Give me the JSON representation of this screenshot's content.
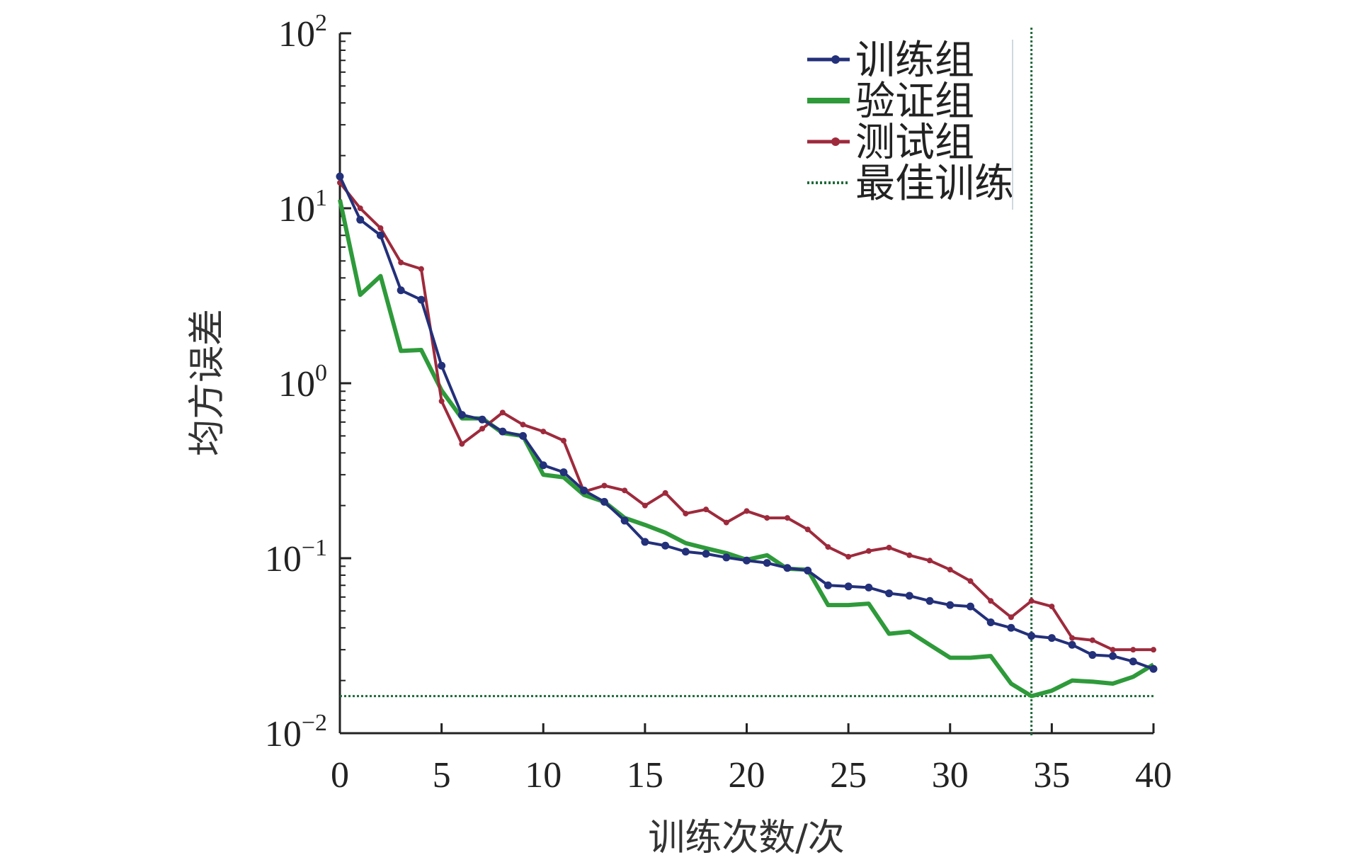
{
  "chart_data": {
    "type": "line",
    "title": "",
    "xlabel": "训练次数/次",
    "ylabel": "均方误差",
    "xlim": [
      0,
      40
    ],
    "ylim": [
      0.01,
      100
    ],
    "yscale": "log",
    "xticks": [
      0,
      5,
      10,
      15,
      20,
      25,
      30,
      35,
      40
    ],
    "yticks": [
      {
        "base": "10",
        "exp": "2",
        "value": 100
      },
      {
        "base": "10",
        "exp": "1",
        "value": 10
      },
      {
        "base": "10",
        "exp": "0",
        "value": 1
      },
      {
        "base": "10",
        "exp": "−1",
        "value": 0.1
      },
      {
        "base": "10",
        "exp": "−2",
        "value": 0.01
      }
    ],
    "legend_position": "top-right",
    "x": [
      0,
      1,
      2,
      3,
      4,
      5,
      6,
      7,
      8,
      9,
      10,
      11,
      12,
      13,
      14,
      15,
      16,
      17,
      18,
      19,
      20,
      21,
      22,
      23,
      24,
      25,
      26,
      27,
      28,
      29,
      30,
      31,
      32,
      33,
      34,
      35,
      36,
      37,
      38,
      39,
      40
    ],
    "series": [
      {
        "name": "训练组",
        "color": "#23307a",
        "marker": "circle",
        "values": [
          15.2,
          8.6,
          7.0,
          3.4,
          3.0,
          1.26,
          0.66,
          0.62,
          0.53,
          0.5,
          0.34,
          0.31,
          0.244,
          0.21,
          0.164,
          0.124,
          0.118,
          0.109,
          0.106,
          0.101,
          0.097,
          0.094,
          0.088,
          0.085,
          0.07,
          0.069,
          0.068,
          0.063,
          0.061,
          0.057,
          0.054,
          0.053,
          0.043,
          0.04,
          0.036,
          0.035,
          0.032,
          0.028,
          0.0276,
          0.0257,
          0.0233
        ]
      },
      {
        "name": "验证组",
        "color": "#2e9a3a",
        "marker": "none",
        "values": [
          11.2,
          3.2,
          4.1,
          1.53,
          1.55,
          0.91,
          0.63,
          0.63,
          0.52,
          0.5,
          0.3,
          0.29,
          0.23,
          0.21,
          0.17,
          0.155,
          0.14,
          0.122,
          0.114,
          0.107,
          0.098,
          0.104,
          0.087,
          0.086,
          0.054,
          0.054,
          0.055,
          0.037,
          0.038,
          0.032,
          0.027,
          0.027,
          0.0276,
          0.0192,
          0.0163,
          0.0175,
          0.02,
          0.0197,
          0.0192,
          0.021,
          0.0247
        ]
      },
      {
        "name": "测试组",
        "color": "#9e2a3c",
        "marker": "dot",
        "values": [
          14.0,
          10.0,
          7.7,
          4.9,
          4.5,
          0.79,
          0.45,
          0.55,
          0.68,
          0.58,
          0.53,
          0.47,
          0.24,
          0.26,
          0.244,
          0.2,
          0.236,
          0.18,
          0.19,
          0.16,
          0.186,
          0.17,
          0.17,
          0.146,
          0.116,
          0.102,
          0.11,
          0.115,
          0.104,
          0.097,
          0.086,
          0.074,
          0.057,
          0.046,
          0.057,
          0.053,
          0.035,
          0.034,
          0.03,
          0.03,
          0.03
        ]
      }
    ],
    "best": {
      "name": "最佳训练",
      "color": "#1f6a3a",
      "epoch": 34,
      "value": 0.0163
    }
  }
}
